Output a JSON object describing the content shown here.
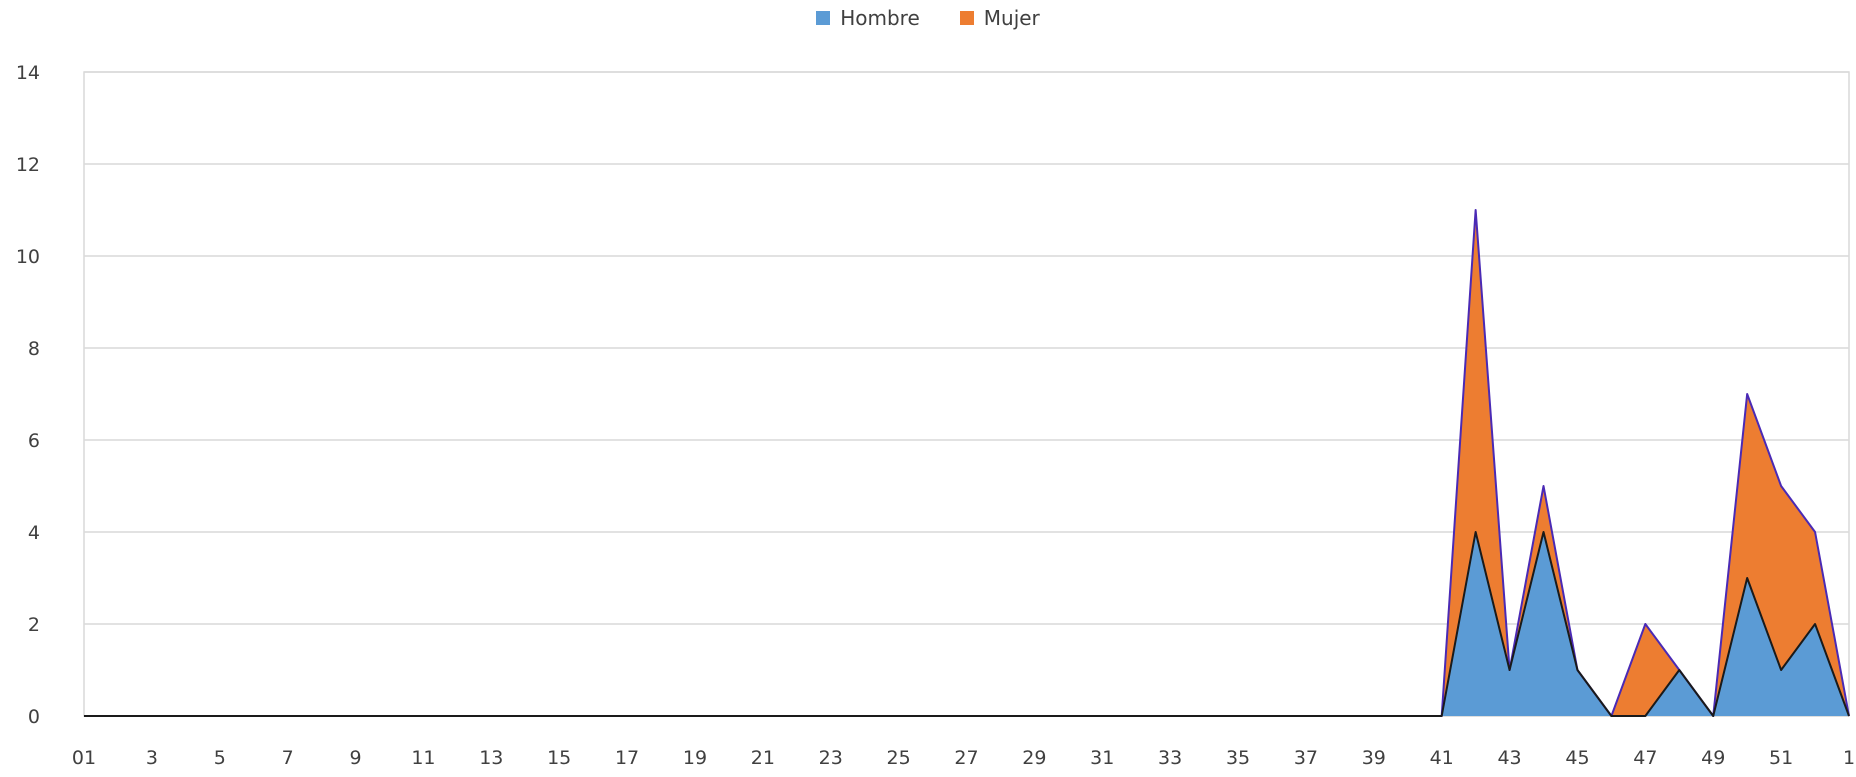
{
  "chart_data": {
    "type": "area",
    "stacked": true,
    "title": "",
    "xlabel": "",
    "ylabel": "",
    "ylim": [
      0,
      14
    ],
    "yticks": [
      0,
      2,
      4,
      6,
      8,
      10,
      12,
      14
    ],
    "grid": true,
    "legend_position": "top-center",
    "x": [
      "01",
      "2",
      "3",
      "4",
      "5",
      "6",
      "7",
      "8",
      "9",
      "10",
      "11",
      "12",
      "13",
      "14",
      "15",
      "16",
      "17",
      "18",
      "19",
      "20",
      "21",
      "22",
      "23",
      "24",
      "25",
      "26",
      "27",
      "28",
      "29",
      "30",
      "31",
      "32",
      "33",
      "34",
      "35",
      "36",
      "37",
      "38",
      "39",
      "40",
      "41",
      "42",
      "43",
      "44",
      "45",
      "46",
      "47",
      "48",
      "49",
      "50",
      "51",
      "52",
      "1"
    ],
    "xtick_labels": [
      "01",
      "3",
      "5",
      "7",
      "9",
      "11",
      "13",
      "15",
      "17",
      "19",
      "21",
      "23",
      "25",
      "27",
      "29",
      "31",
      "33",
      "35",
      "37",
      "39",
      "41",
      "43",
      "45",
      "47",
      "49",
      "51",
      "1"
    ],
    "series": [
      {
        "name": "Hombre",
        "color": "#5B9BD5",
        "values": [
          0,
          0,
          0,
          0,
          0,
          0,
          0,
          0,
          0,
          0,
          0,
          0,
          0,
          0,
          0,
          0,
          0,
          0,
          0,
          0,
          0,
          0,
          0,
          0,
          0,
          0,
          0,
          0,
          0,
          0,
          0,
          0,
          0,
          0,
          0,
          0,
          0,
          0,
          0,
          0,
          0,
          4,
          1,
          4,
          1,
          0,
          0,
          1,
          0,
          3,
          1,
          2,
          0
        ]
      },
      {
        "name": "Mujer",
        "color": "#ED7D31",
        "values": [
          0,
          0,
          0,
          0,
          0,
          0,
          0,
          0,
          0,
          0,
          0,
          0,
          0,
          0,
          0,
          0,
          0,
          0,
          0,
          0,
          0,
          0,
          0,
          0,
          0,
          0,
          0,
          0,
          0,
          0,
          0,
          0,
          0,
          0,
          0,
          0,
          0,
          0,
          0,
          0,
          0,
          7,
          0,
          1,
          0,
          0,
          2,
          0,
          0,
          4,
          4,
          2,
          0
        ]
      }
    ]
  }
}
